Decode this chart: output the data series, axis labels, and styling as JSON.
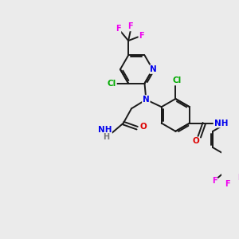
{
  "bg_color": "#ebebeb",
  "bond_color": "#1a1a1a",
  "bond_width": 1.4,
  "atom_colors": {
    "C": "#1a1a1a",
    "N": "#0000ee",
    "O": "#dd0000",
    "F": "#ee00ee",
    "Cl": "#00aa00",
    "H": "#777777"
  },
  "figsize": [
    3.0,
    3.0
  ],
  "dpi": 100
}
